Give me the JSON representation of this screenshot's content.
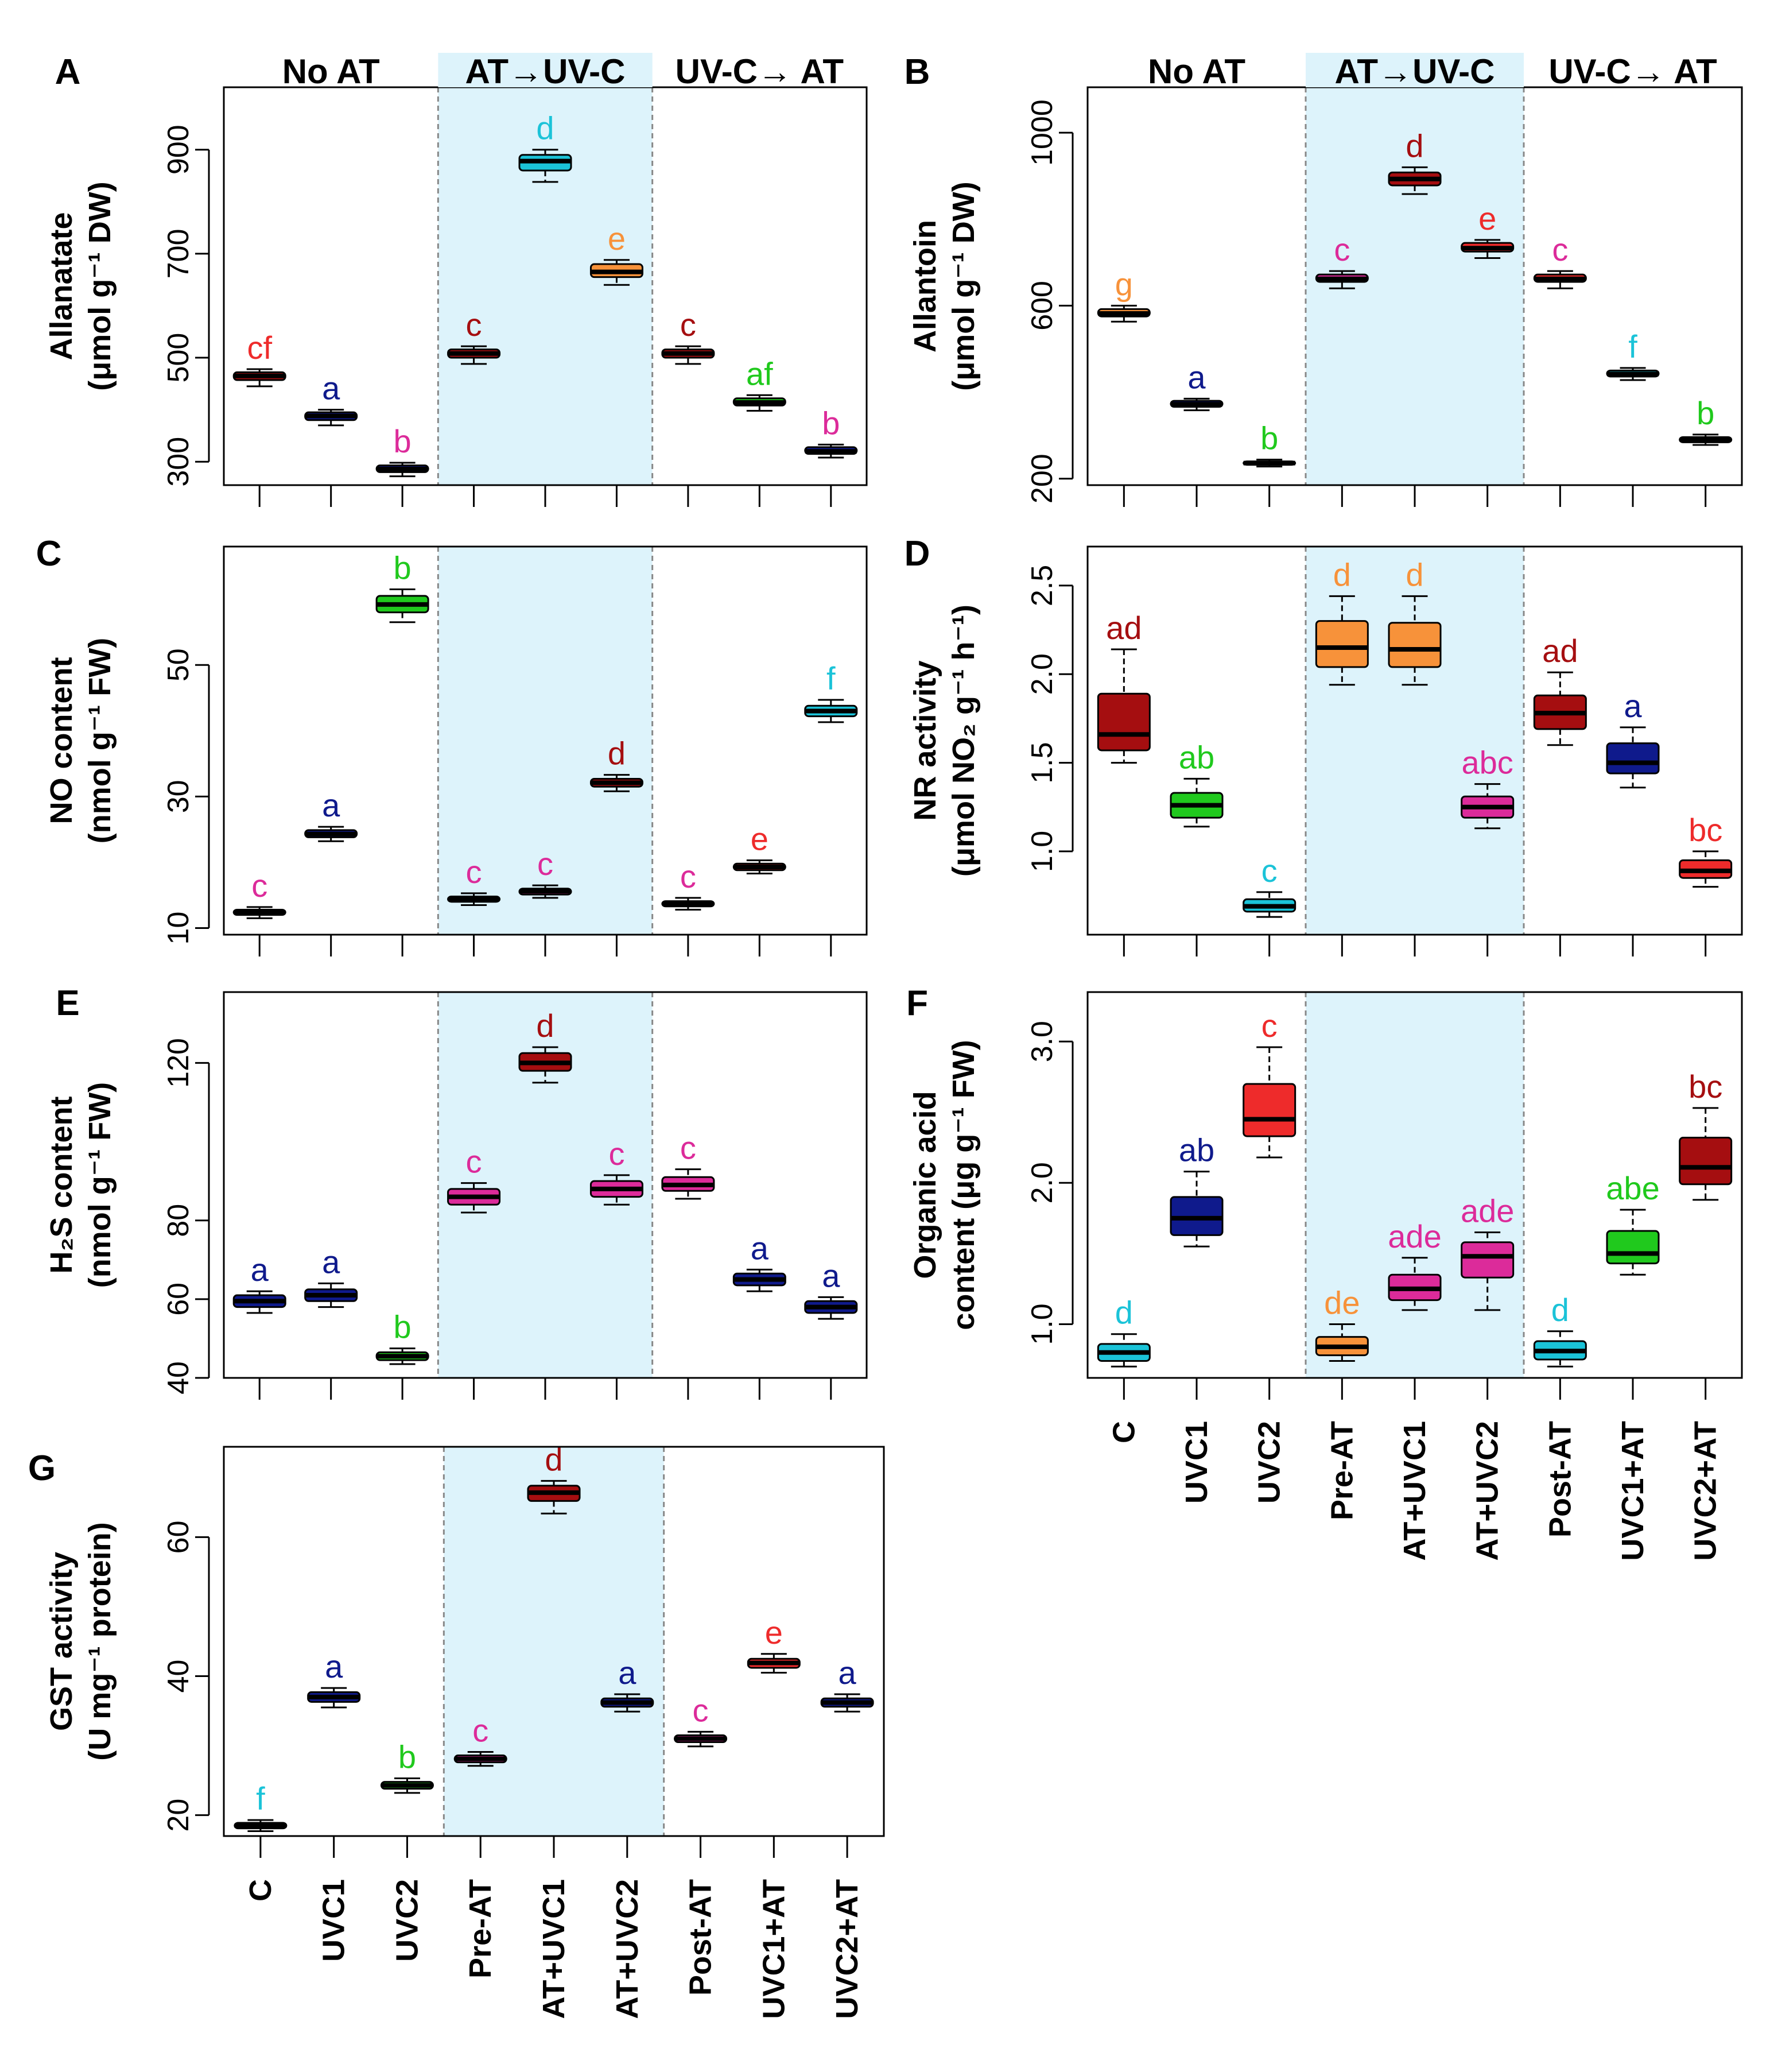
{
  "figure": {
    "categories": [
      "C",
      "UVC1",
      "UVC2",
      "Pre-AT",
      "AT+UVC1",
      "AT+UVC2",
      "Post-AT",
      "UVC1+AT",
      "UVC2+AT"
    ],
    "colors": {
      "orange": "#f7923a",
      "darkred": "#a50e10",
      "navy": "#0f1a8c",
      "cyan": "#1bc3d8",
      "magenta": "#dc2b9a",
      "green": "#20c91d",
      "red": "#ee2b2b",
      "shade": "#ddf3fb"
    }
  },
  "chart_data": [
    {
      "panel": "A",
      "type": "box",
      "ylabel_line1": "Allanatate",
      "ylabel_line2": "(μmol g⁻¹ DW)",
      "group_labels": [
        "No AT",
        "AT→UV-C",
        "UV-C→ AT"
      ],
      "ylim": [
        255,
        1020
      ],
      "yticks": [
        300,
        500,
        700,
        900
      ],
      "categories": [
        "C",
        "UVC1",
        "UVC2",
        "Pre-AT",
        "AT+UVC1",
        "AT+UVC2",
        "Post-AT",
        "UVC1+AT",
        "UVC2+AT"
      ],
      "boxes": [
        {
          "min": 445,
          "q1": 457,
          "median": 465,
          "q3": 472,
          "max": 478,
          "color": "darkred"
        },
        {
          "min": 370,
          "q1": 380,
          "median": 388,
          "q3": 395,
          "max": 400,
          "color": "navy"
        },
        {
          "min": 272,
          "q1": 280,
          "median": 286,
          "q3": 293,
          "max": 298,
          "color": "navy"
        },
        {
          "min": 488,
          "q1": 500,
          "median": 508,
          "q3": 516,
          "max": 522,
          "color": "darkred"
        },
        {
          "min": 838,
          "q1": 860,
          "median": 878,
          "q3": 890,
          "max": 900,
          "color": "cyan"
        },
        {
          "min": 640,
          "q1": 655,
          "median": 665,
          "q3": 680,
          "max": 688,
          "color": "orange"
        },
        {
          "min": 488,
          "q1": 500,
          "median": 508,
          "q3": 516,
          "max": 522,
          "color": "darkred"
        },
        {
          "min": 398,
          "q1": 408,
          "median": 414,
          "q3": 422,
          "max": 428,
          "color": "green"
        },
        {
          "min": 308,
          "q1": 315,
          "median": 320,
          "q3": 328,
          "max": 333,
          "color": "navy"
        }
      ],
      "sig_letters": [
        {
          "text": "cf",
          "color": "red"
        },
        {
          "text": "a",
          "color": "navy"
        },
        {
          "text": "b",
          "color": "magenta"
        },
        {
          "text": "c",
          "color": "darkred"
        },
        {
          "text": "d",
          "color": "cyan"
        },
        {
          "text": "e",
          "color": "orange"
        },
        {
          "text": "c",
          "color": "darkred"
        },
        {
          "text": "af",
          "color": "green"
        },
        {
          "text": "b",
          "color": "magenta"
        }
      ]
    },
    {
      "panel": "B",
      "type": "box",
      "ylabel_line1": "Allantoin",
      "ylabel_line2": "(μmol g⁻¹ DW)",
      "group_labels": [
        "No AT",
        "AT→UV-C",
        "UV-C→ AT"
      ],
      "ylim": [
        185,
        1105
      ],
      "yticks": [
        200,
        600,
        1000
      ],
      "categories": [
        "C",
        "UVC1",
        "UVC2",
        "Pre-AT",
        "AT+UVC1",
        "AT+UVC2",
        "Post-AT",
        "UVC1+AT",
        "UVC2+AT"
      ],
      "boxes": [
        {
          "min": 563,
          "q1": 575,
          "median": 582,
          "q3": 592,
          "max": 600,
          "color": "orange"
        },
        {
          "min": 358,
          "q1": 366,
          "median": 372,
          "q3": 380,
          "max": 385,
          "color": "navy"
        },
        {
          "min": 228,
          "q1": 232,
          "median": 236,
          "q3": 240,
          "max": 244,
          "color": "cyan"
        },
        {
          "min": 640,
          "q1": 655,
          "median": 662,
          "q3": 672,
          "max": 680,
          "color": "magenta"
        },
        {
          "min": 858,
          "q1": 878,
          "median": 893,
          "q3": 908,
          "max": 920,
          "color": "darkred"
        },
        {
          "min": 710,
          "q1": 725,
          "median": 733,
          "q3": 745,
          "max": 752,
          "color": "red"
        },
        {
          "min": 640,
          "q1": 655,
          "median": 662,
          "q3": 672,
          "max": 680,
          "color": "red"
        },
        {
          "min": 428,
          "q1": 436,
          "median": 442,
          "q3": 450,
          "max": 456,
          "color": "cyan"
        },
        {
          "min": 278,
          "q1": 284,
          "median": 290,
          "q3": 296,
          "max": 302,
          "color": "navy"
        }
      ],
      "sig_letters": [
        {
          "text": "g",
          "color": "orange"
        },
        {
          "text": "a",
          "color": "navy"
        },
        {
          "text": "b",
          "color": "green"
        },
        {
          "text": "c",
          "color": "magenta"
        },
        {
          "text": "d",
          "color": "darkred"
        },
        {
          "text": "e",
          "color": "red"
        },
        {
          "text": "c",
          "color": "magenta"
        },
        {
          "text": "f",
          "color": "cyan"
        },
        {
          "text": "b",
          "color": "green"
        }
      ]
    },
    {
      "panel": "C",
      "type": "box",
      "ylabel_line1": "NO content",
      "ylabel_line2": "(nmol g⁻¹ FW)",
      "group_labels": [],
      "ylim": [
        9,
        68
      ],
      "yticks": [
        10,
        30,
        50
      ],
      "categories": [
        "C",
        "UVC1",
        "UVC2",
        "Pre-AT",
        "AT+UVC1",
        "AT+UVC2",
        "Post-AT",
        "UVC1+AT",
        "UVC2+AT"
      ],
      "boxes": [
        {
          "min": 11.5,
          "q1": 12.0,
          "median": 12.4,
          "q3": 12.8,
          "max": 13.2,
          "color": "darkred"
        },
        {
          "min": 23.2,
          "q1": 23.8,
          "median": 24.3,
          "q3": 24.9,
          "max": 25.4,
          "color": "navy"
        },
        {
          "min": 56.5,
          "q1": 58.0,
          "median": 59.2,
          "q3": 60.5,
          "max": 61.5,
          "color": "green"
        },
        {
          "min": 13.5,
          "q1": 14.0,
          "median": 14.4,
          "q3": 14.8,
          "max": 15.3,
          "color": "magenta"
        },
        {
          "min": 14.6,
          "q1": 15.1,
          "median": 15.6,
          "q3": 16.0,
          "max": 16.5,
          "color": "magenta"
        },
        {
          "min": 30.8,
          "q1": 31.5,
          "median": 32.1,
          "q3": 32.7,
          "max": 33.3,
          "color": "darkred"
        },
        {
          "min": 12.8,
          "q1": 13.3,
          "median": 13.7,
          "q3": 14.1,
          "max": 14.6,
          "color": "magenta"
        },
        {
          "min": 18.3,
          "q1": 18.8,
          "median": 19.3,
          "q3": 19.8,
          "max": 20.3,
          "color": "red"
        },
        {
          "min": 41.3,
          "q1": 42.2,
          "median": 43.0,
          "q3": 43.8,
          "max": 44.7,
          "color": "cyan"
        }
      ],
      "sig_letters": [
        {
          "text": "c",
          "color": "magenta"
        },
        {
          "text": "a",
          "color": "navy"
        },
        {
          "text": "b",
          "color": "green"
        },
        {
          "text": "c",
          "color": "magenta"
        },
        {
          "text": "c",
          "color": "magenta"
        },
        {
          "text": "d",
          "color": "darkred"
        },
        {
          "text": "c",
          "color": "magenta"
        },
        {
          "text": "e",
          "color": "red"
        },
        {
          "text": "f",
          "color": "cyan"
        }
      ]
    },
    {
      "panel": "D",
      "type": "box",
      "ylabel_line1": "NR activity",
      "ylabel_line2": "(μmol NO₂ g⁻¹ h⁻¹)",
      "group_labels": [],
      "ylim": [
        0.53,
        2.72
      ],
      "yticks": [
        1.0,
        1.5,
        2.0,
        2.5
      ],
      "categories": [
        "C",
        "UVC1",
        "UVC2",
        "Pre-AT",
        "AT+UVC1",
        "AT+UVC2",
        "Post-AT",
        "UVC1+AT",
        "UVC2+AT"
      ],
      "boxes": [
        {
          "min": 1.5,
          "q1": 1.57,
          "median": 1.66,
          "q3": 1.89,
          "max": 2.14,
          "color": "darkred"
        },
        {
          "min": 1.14,
          "q1": 1.19,
          "median": 1.26,
          "q3": 1.33,
          "max": 1.41,
          "color": "green"
        },
        {
          "min": 0.63,
          "q1": 0.66,
          "median": 0.69,
          "q3": 0.73,
          "max": 0.77,
          "color": "cyan"
        },
        {
          "min": 1.94,
          "q1": 2.04,
          "median": 2.15,
          "q3": 2.3,
          "max": 2.44,
          "color": "orange"
        },
        {
          "min": 1.94,
          "q1": 2.04,
          "median": 2.14,
          "q3": 2.29,
          "max": 2.44,
          "color": "orange"
        },
        {
          "min": 1.13,
          "q1": 1.19,
          "median": 1.25,
          "q3": 1.31,
          "max": 1.38,
          "color": "magenta"
        },
        {
          "min": 1.6,
          "q1": 1.69,
          "median": 1.78,
          "q3": 1.88,
          "max": 2.01,
          "color": "darkred"
        },
        {
          "min": 1.36,
          "q1": 1.44,
          "median": 1.5,
          "q3": 1.61,
          "max": 1.7,
          "color": "navy"
        },
        {
          "min": 0.8,
          "q1": 0.85,
          "median": 0.89,
          "q3": 0.95,
          "max": 1.0,
          "color": "red"
        }
      ],
      "sig_letters": [
        {
          "text": "ad",
          "color": "darkred"
        },
        {
          "text": "ab",
          "color": "green"
        },
        {
          "text": "c",
          "color": "cyan"
        },
        {
          "text": "d",
          "color": "orange"
        },
        {
          "text": "d",
          "color": "orange"
        },
        {
          "text": "abc",
          "color": "magenta"
        },
        {
          "text": "ad",
          "color": "darkred"
        },
        {
          "text": "a",
          "color": "navy"
        },
        {
          "text": "bc",
          "color": "red"
        }
      ]
    },
    {
      "panel": "E",
      "type": "box",
      "ylabel_line1": "H₂S content",
      "ylabel_line2": "(nmol g⁻¹ FW)",
      "group_labels": [],
      "ylim": [
        40,
        138
      ],
      "yticks": [
        40,
        60,
        80,
        120
      ],
      "categories": [
        "C",
        "UVC1",
        "UVC2",
        "Pre-AT",
        "AT+UVC1",
        "AT+UVC2",
        "Post-AT",
        "UVC1+AT",
        "UVC2+AT"
      ],
      "boxes": [
        {
          "min": 56.5,
          "q1": 58.0,
          "median": 59.5,
          "q3": 61.0,
          "max": 62.0,
          "color": "navy"
        },
        {
          "min": 58.0,
          "q1": 59.5,
          "median": 61.0,
          "q3": 62.5,
          "max": 64.0,
          "color": "navy"
        },
        {
          "min": 43.5,
          "q1": 44.5,
          "median": 45.5,
          "q3": 46.5,
          "max": 47.5,
          "color": "green"
        },
        {
          "min": 82.0,
          "q1": 84.0,
          "median": 86.0,
          "q3": 88.0,
          "max": 89.5,
          "color": "magenta"
        },
        {
          "min": 115.0,
          "q1": 118.0,
          "median": 120.0,
          "q3": 122.5,
          "max": 124.0,
          "color": "darkred"
        },
        {
          "min": 84.0,
          "q1": 86.0,
          "median": 88.0,
          "q3": 90.0,
          "max": 91.5,
          "color": "magenta"
        },
        {
          "min": 85.5,
          "q1": 87.5,
          "median": 89.0,
          "q3": 91.0,
          "max": 93.0,
          "color": "magenta"
        },
        {
          "min": 62.0,
          "q1": 63.5,
          "median": 65.0,
          "q3": 66.5,
          "max": 67.5,
          "color": "navy"
        },
        {
          "min": 55.0,
          "q1": 56.5,
          "median": 58.0,
          "q3": 59.5,
          "max": 60.5,
          "color": "navy"
        }
      ],
      "sig_letters": [
        {
          "text": "a",
          "color": "navy"
        },
        {
          "text": "a",
          "color": "navy"
        },
        {
          "text": "b",
          "color": "green"
        },
        {
          "text": "c",
          "color": "magenta"
        },
        {
          "text": "d",
          "color": "darkred"
        },
        {
          "text": "c",
          "color": "magenta"
        },
        {
          "text": "c",
          "color": "magenta"
        },
        {
          "text": "a",
          "color": "navy"
        },
        {
          "text": "a",
          "color": "navy"
        }
      ]
    },
    {
      "panel": "F",
      "type": "box",
      "ylabel_line1": "Organic acid",
      "ylabel_line2": "content (μg g⁻¹ FW)",
      "group_labels": [],
      "ylim": [
        0.62,
        3.35
      ],
      "yticks": [
        1.0,
        2.0,
        3.0
      ],
      "categories": [
        "C",
        "UVC1",
        "UVC2",
        "Pre-AT",
        "AT+UVC1",
        "AT+UVC2",
        "Post-AT",
        "UVC1+AT",
        "UVC2+AT"
      ],
      "boxes": [
        {
          "min": 0.7,
          "q1": 0.74,
          "median": 0.8,
          "q3": 0.86,
          "max": 0.93,
          "color": "cyan"
        },
        {
          "min": 1.55,
          "q1": 1.63,
          "median": 1.75,
          "q3": 1.9,
          "max": 2.08,
          "color": "navy"
        },
        {
          "min": 2.18,
          "q1": 2.33,
          "median": 2.45,
          "q3": 2.7,
          "max": 2.96,
          "color": "red"
        },
        {
          "min": 0.74,
          "q1": 0.78,
          "median": 0.84,
          "q3": 0.91,
          "max": 1.0,
          "color": "orange"
        },
        {
          "min": 1.1,
          "q1": 1.17,
          "median": 1.25,
          "q3": 1.35,
          "max": 1.47,
          "color": "magenta"
        },
        {
          "min": 1.1,
          "q1": 1.33,
          "median": 1.48,
          "q3": 1.58,
          "max": 1.65,
          "color": "magenta"
        },
        {
          "min": 0.7,
          "q1": 0.75,
          "median": 0.81,
          "q3": 0.88,
          "max": 0.95,
          "color": "cyan"
        },
        {
          "min": 1.35,
          "q1": 1.43,
          "median": 1.5,
          "q3": 1.66,
          "max": 1.81,
          "color": "green"
        },
        {
          "min": 1.88,
          "q1": 1.99,
          "median": 2.11,
          "q3": 2.32,
          "max": 2.53,
          "color": "darkred"
        }
      ],
      "sig_letters": [
        {
          "text": "d",
          "color": "cyan"
        },
        {
          "text": "ab",
          "color": "navy"
        },
        {
          "text": "c",
          "color": "red"
        },
        {
          "text": "de",
          "color": "orange"
        },
        {
          "text": "ade",
          "color": "magenta"
        },
        {
          "text": "ade",
          "color": "magenta"
        },
        {
          "text": "d",
          "color": "cyan"
        },
        {
          "text": "abe",
          "color": "green"
        },
        {
          "text": "bc",
          "color": "darkred"
        }
      ]
    },
    {
      "panel": "G",
      "type": "box",
      "ylabel_line1": "GST activity",
      "ylabel_line2": "(U mg⁻¹ protein)",
      "group_labels": [],
      "ylim": [
        17,
        73
      ],
      "yticks": [
        20,
        40,
        60
      ],
      "categories": [
        "C",
        "UVC1",
        "UVC2",
        "Pre-AT",
        "AT+UVC1",
        "AT+UVC2",
        "Post-AT",
        "UVC1+AT",
        "UVC2+AT"
      ],
      "boxes": [
        {
          "min": 17.7,
          "q1": 18.1,
          "median": 18.5,
          "q3": 18.9,
          "max": 19.3,
          "color": "cyan"
        },
        {
          "min": 35.5,
          "q1": 36.3,
          "median": 37.0,
          "q3": 37.7,
          "max": 38.3,
          "color": "navy"
        },
        {
          "min": 23.2,
          "q1": 23.8,
          "median": 24.3,
          "q3": 24.8,
          "max": 25.3,
          "color": "green"
        },
        {
          "min": 27.1,
          "q1": 27.6,
          "median": 28.1,
          "q3": 28.6,
          "max": 29.1,
          "color": "magenta"
        },
        {
          "min": 63.4,
          "q1": 65.2,
          "median": 66.4,
          "q3": 67.4,
          "max": 68.1,
          "color": "darkred"
        },
        {
          "min": 34.9,
          "q1": 35.6,
          "median": 36.2,
          "q3": 36.8,
          "max": 37.4,
          "color": "navy"
        },
        {
          "min": 29.9,
          "q1": 30.5,
          "median": 31.0,
          "q3": 31.5,
          "max": 32.0,
          "color": "magenta"
        },
        {
          "min": 40.5,
          "q1": 41.2,
          "median": 41.9,
          "q3": 42.5,
          "max": 43.2,
          "color": "red"
        },
        {
          "min": 34.9,
          "q1": 35.6,
          "median": 36.2,
          "q3": 36.8,
          "max": 37.4,
          "color": "navy"
        }
      ],
      "sig_letters": [
        {
          "text": "f",
          "color": "cyan"
        },
        {
          "text": "a",
          "color": "navy"
        },
        {
          "text": "b",
          "color": "green"
        },
        {
          "text": "c",
          "color": "magenta"
        },
        {
          "text": "d",
          "color": "darkred"
        },
        {
          "text": "a",
          "color": "navy"
        },
        {
          "text": "c",
          "color": "magenta"
        },
        {
          "text": "e",
          "color": "red"
        },
        {
          "text": "a",
          "color": "navy"
        }
      ]
    }
  ]
}
